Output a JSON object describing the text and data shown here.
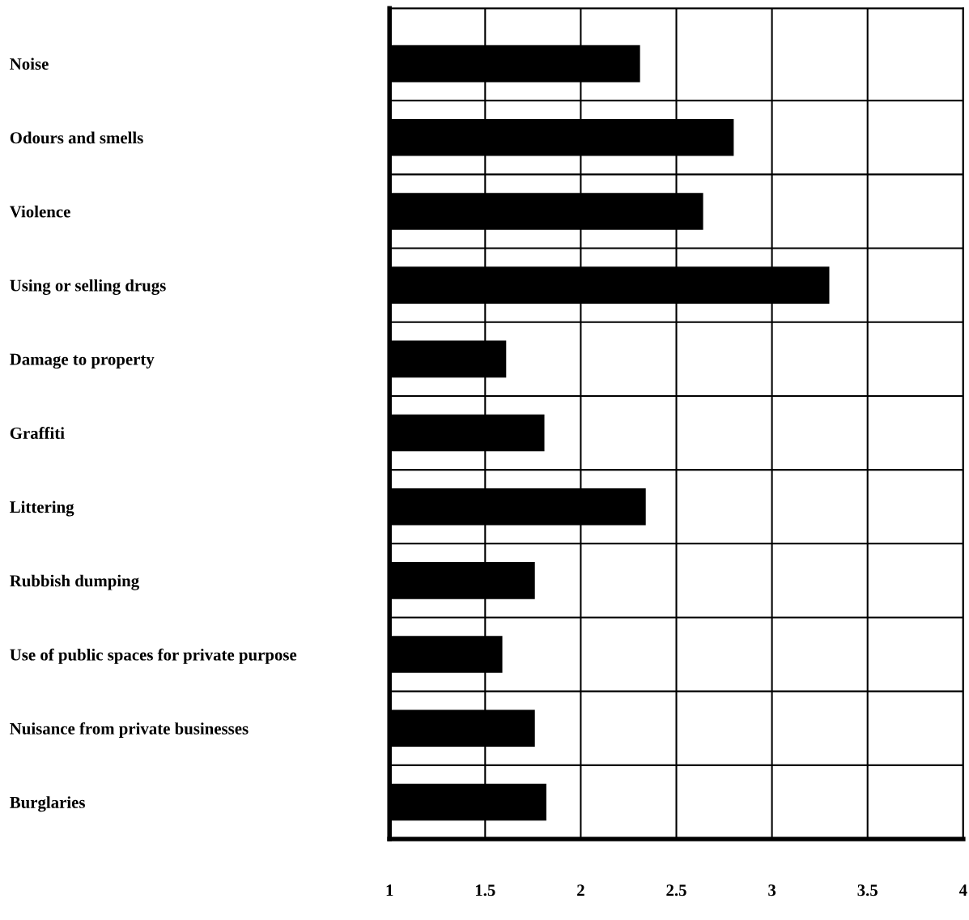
{
  "chart_data": {
    "type": "bar",
    "orientation": "horizontal",
    "categories": [
      "Noise",
      "Odours and smells",
      "Violence",
      "Using or selling drugs",
      "Damage to property",
      "Graffiti",
      "Littering",
      "Rubbish dumping",
      "Use of public spaces for private purpose",
      "Nuisance from private businesses",
      "Burglaries"
    ],
    "values": [
      2.31,
      2.8,
      2.64,
      3.3,
      1.61,
      1.81,
      2.34,
      1.76,
      1.59,
      1.76,
      1.82
    ],
    "color": "#000000",
    "xlim": [
      1,
      4
    ],
    "xticks": [
      1,
      1.5,
      2,
      2.5,
      3,
      3.5,
      4
    ],
    "grid": true
  }
}
